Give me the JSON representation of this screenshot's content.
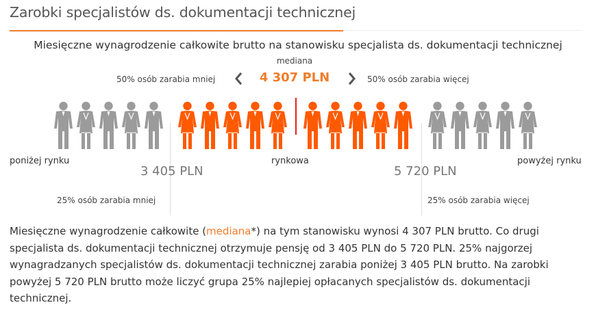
{
  "header": {
    "title": "Zarobki specjalistów ds. dokumentacji technicznej"
  },
  "chart": {
    "subtitle": "Miesięczne wynagrodzenie całkowite brutto na stanowisku specjalista ds. dokumentacji technicznej",
    "median_label": "mediana",
    "median_value": "4 307 PLN",
    "less_half": "50% osób zarabia mniej",
    "more_half": "50% osób zarabia więcej",
    "below_market": "poniżej rynku",
    "market": "rynkowa",
    "above_market": "powyżej rynku",
    "q1_value": "3 405 PLN",
    "q3_value": "5 720 PLN",
    "less_quarter": "25% osób zarabia mniej",
    "more_quarter": "25% osób zarabia więcej"
  },
  "colors": {
    "accent": "#f07d2a",
    "figure_orange": "#ff5a00",
    "figure_gray": "#9b9b9b",
    "median_line": "#e2231a"
  },
  "icons": {
    "prev": "chevron-left-icon",
    "next": "chevron-right-icon",
    "figure_male": "person-male-icon",
    "figure_female": "person-female-icon"
  },
  "people": [
    {
      "type": "male",
      "color": "gray"
    },
    {
      "type": "female",
      "color": "gray"
    },
    {
      "type": "male",
      "color": "gray"
    },
    {
      "type": "female",
      "color": "gray"
    },
    {
      "type": "male",
      "color": "gray"
    },
    {
      "type": "female",
      "color": "orange"
    },
    {
      "type": "male",
      "color": "orange"
    },
    {
      "type": "female",
      "color": "orange"
    },
    {
      "type": "male",
      "color": "orange"
    },
    {
      "type": "female",
      "color": "orange"
    },
    {
      "type": "male",
      "color": "orange"
    },
    {
      "type": "female",
      "color": "orange"
    },
    {
      "type": "male",
      "color": "orange"
    },
    {
      "type": "female",
      "color": "orange"
    },
    {
      "type": "male",
      "color": "orange"
    },
    {
      "type": "female",
      "color": "gray"
    },
    {
      "type": "male",
      "color": "gray"
    },
    {
      "type": "female",
      "color": "gray"
    },
    {
      "type": "male",
      "color": "gray"
    },
    {
      "type": "female",
      "color": "gray"
    }
  ],
  "description": {
    "before": "Miesięczne wynagrodzenie całkowite (",
    "highlight": "mediana",
    "after": "*) na tym stanowisku wynosi 4 307 PLN brutto. Co drugi specjalista ds. dokumentacji technicznej otrzymuje pensję od 3 405 PLN do 5 720 PLN. 25% najgorzej wynagradzanych specjalistów ds. dokumentacji technicznej zarabia poniżej 3 405 PLN brutto. Na zarobki powyżej 5 720 PLN brutto może liczyć grupa 25% najlepiej opłacanych specjalistów ds. dokumentacji technicznej."
  }
}
